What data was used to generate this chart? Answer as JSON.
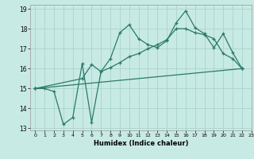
{
  "xlabel": "Humidex (Indice chaleur)",
  "bg_color": "#c8eae4",
  "grid_color": "#a8d4cc",
  "line_color": "#2a7a6a",
  "xlim": [
    -0.5,
    23
  ],
  "ylim": [
    12.9,
    19.2
  ],
  "xticks": [
    0,
    1,
    2,
    3,
    4,
    5,
    6,
    7,
    8,
    9,
    10,
    11,
    12,
    13,
    14,
    15,
    16,
    17,
    18,
    19,
    20,
    21,
    22,
    23
  ],
  "yticks": [
    13,
    14,
    15,
    16,
    17,
    18,
    19
  ],
  "line1_x": [
    0,
    1,
    2,
    3,
    4,
    5,
    6,
    7,
    8,
    9,
    10,
    11,
    12,
    13,
    14,
    15,
    16,
    17,
    18,
    19,
    20,
    21,
    22
  ],
  "line1_y": [
    15.0,
    15.0,
    14.85,
    13.2,
    13.55,
    16.25,
    13.3,
    15.85,
    16.5,
    17.8,
    18.2,
    17.5,
    17.2,
    17.05,
    17.4,
    18.3,
    18.9,
    18.05,
    17.75,
    17.05,
    17.75,
    16.8,
    16.0
  ],
  "line2_x": [
    0,
    5,
    6,
    7,
    8,
    9,
    10,
    11,
    12,
    13,
    14,
    15,
    16,
    17,
    18,
    19,
    20,
    21,
    22
  ],
  "line2_y": [
    15.0,
    15.5,
    16.2,
    15.85,
    16.05,
    16.3,
    16.6,
    16.75,
    17.0,
    17.2,
    17.45,
    18.0,
    18.0,
    17.8,
    17.7,
    17.5,
    16.75,
    16.5,
    16.0
  ],
  "line3_x": [
    0,
    22
  ],
  "line3_y": [
    15.0,
    16.0
  ]
}
